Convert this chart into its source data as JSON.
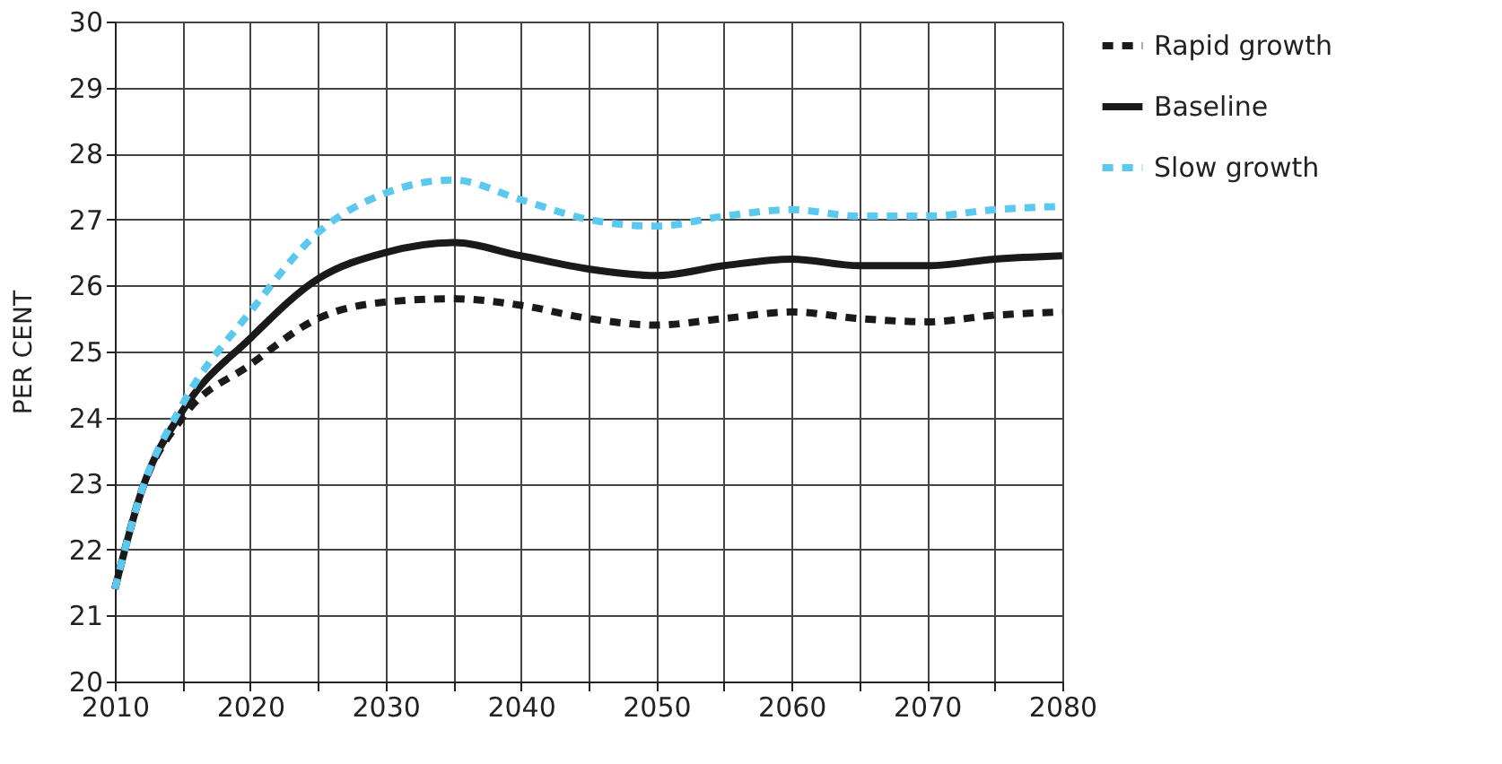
{
  "chart_data": {
    "type": "line",
    "ylabel": "PER CENT",
    "x": [
      2010,
      2012,
      2015,
      2020,
      2025,
      2030,
      2035,
      2040,
      2045,
      2050,
      2055,
      2060,
      2065,
      2070,
      2075,
      2080
    ],
    "series": [
      {
        "name": "Rapid growth",
        "color": "#1a1a1a",
        "line_style": "dashed",
        "values": [
          21.4,
          22.9,
          24.0,
          24.8,
          25.5,
          25.75,
          25.8,
          25.7,
          25.5,
          25.4,
          25.5,
          25.6,
          25.5,
          25.45,
          25.55,
          25.6
        ]
      },
      {
        "name": "Baseline",
        "color": "#1a1a1a",
        "line_style": "solid",
        "values": [
          21.4,
          22.9,
          24.1,
          25.2,
          26.1,
          26.5,
          26.65,
          26.45,
          26.25,
          26.15,
          26.3,
          26.4,
          26.3,
          26.3,
          26.4,
          26.45
        ]
      },
      {
        "name": "Slow growth",
        "color": "#5bc8f0",
        "line_style": "dashed",
        "values": [
          21.4,
          22.9,
          24.2,
          25.6,
          26.8,
          27.4,
          27.6,
          27.3,
          27.0,
          26.9,
          27.05,
          27.15,
          27.05,
          27.05,
          27.15,
          27.2
        ]
      }
    ],
    "xlim": [
      2010,
      2080
    ],
    "xticks": [
      2010,
      {
        "value": 2015,
        "label": null
      },
      2020,
      {
        "value": 2025,
        "label": null
      },
      2030,
      {
        "value": 2035,
        "label": null
      },
      2040,
      {
        "value": 2045,
        "label": null
      },
      2050,
      {
        "value": 2055,
        "label": null
      },
      2060,
      {
        "value": 2065,
        "label": null
      },
      2070,
      {
        "value": 2075,
        "label": null
      },
      2080
    ],
    "ylim": [
      20,
      30
    ],
    "yticks": [
      20,
      21,
      22,
      23,
      24,
      25,
      26,
      27,
      28,
      29,
      30
    ],
    "grid": true,
    "legend": "right"
  }
}
